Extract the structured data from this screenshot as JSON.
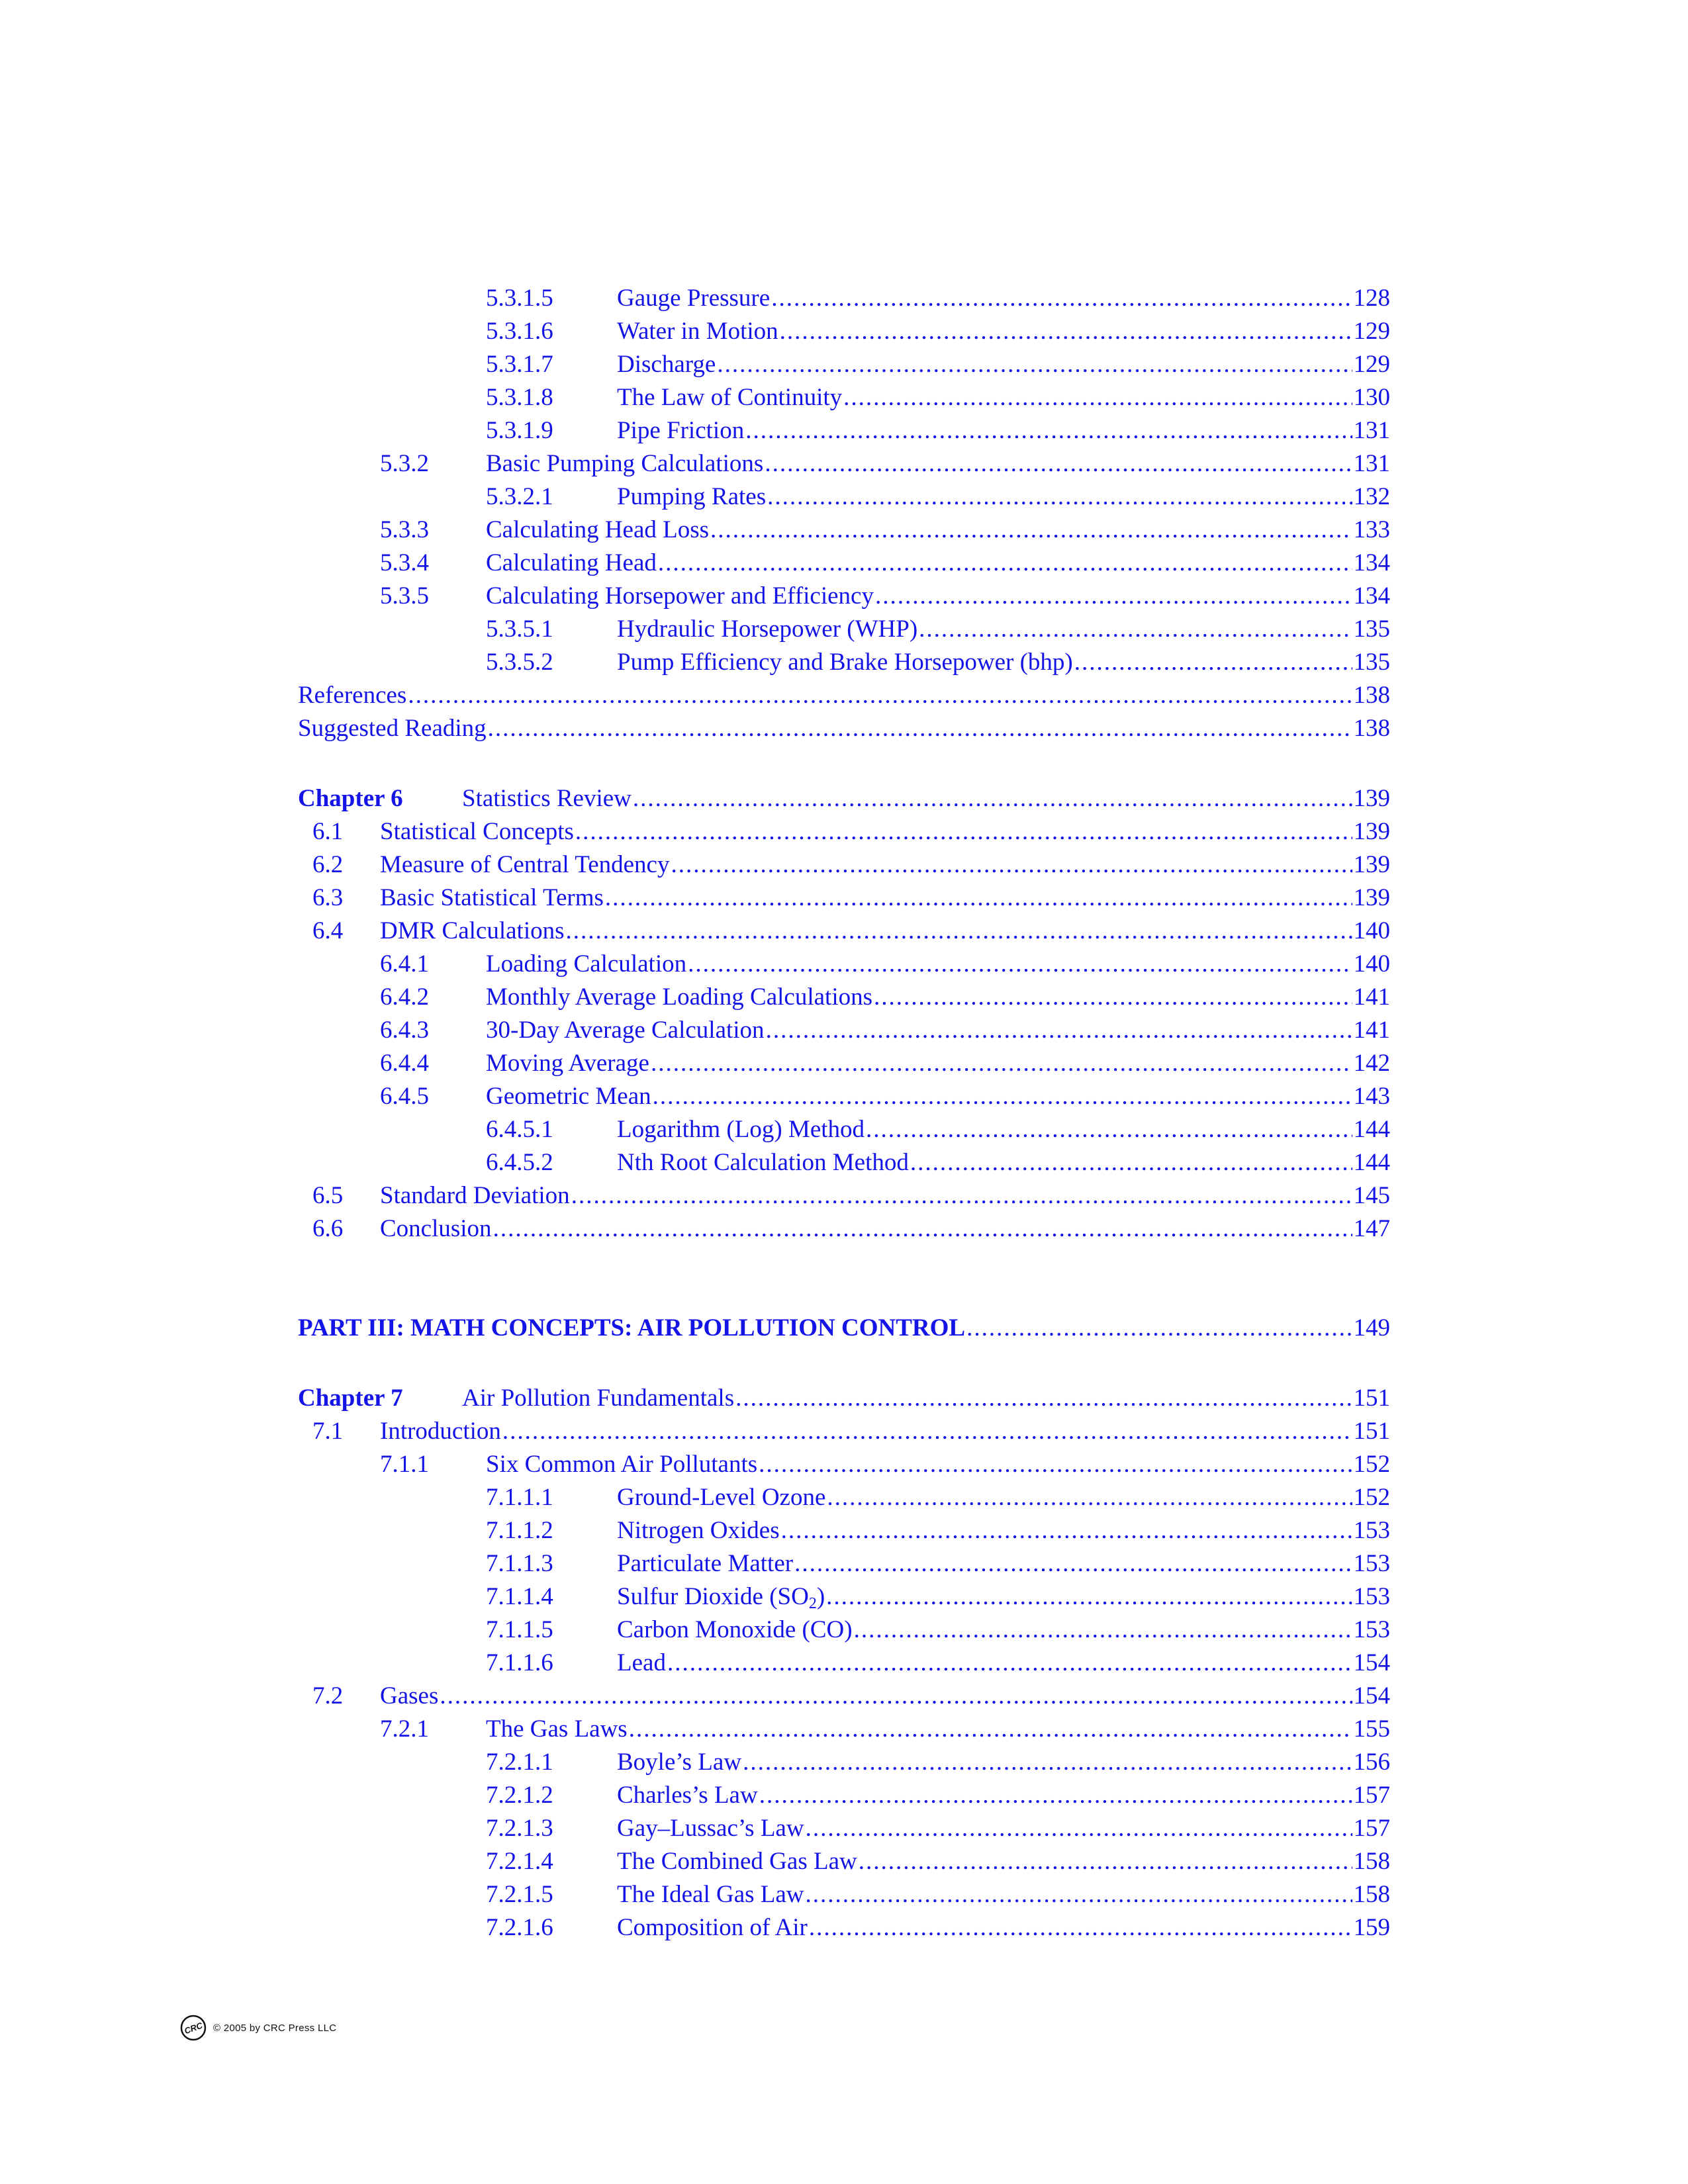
{
  "entries": [
    {
      "num": "5.3.1.5",
      "title": "Gauge Pressure",
      "page": "128",
      "level": 3
    },
    {
      "num": "5.3.1.6",
      "title": "Water in Motion",
      "page": "129",
      "level": 3
    },
    {
      "num": "5.3.1.7",
      "title": "Discharge",
      "page": "129",
      "level": 3
    },
    {
      "num": "5.3.1.8",
      "title": "The Law of Continuity",
      "page": "130",
      "level": 3
    },
    {
      "num": "5.3.1.9",
      "title": "Pipe Friction",
      "page": "131",
      "level": 3
    },
    {
      "num": "5.3.2",
      "title": "Basic Pumping Calculations",
      "page": "131",
      "level": 2
    },
    {
      "num": "5.3.2.1",
      "title": "Pumping Rates",
      "page": "132",
      "level": 3
    },
    {
      "num": "5.3.3",
      "title": "Calculating Head Loss",
      "page": "133",
      "level": 2
    },
    {
      "num": "5.3.4",
      "title": "Calculating Head",
      "page": "134",
      "level": 2
    },
    {
      "num": "5.3.5",
      "title": "Calculating Horsepower and Efficiency",
      "page": "134",
      "level": 2
    },
    {
      "num": "5.3.5.1",
      "title": "Hydraulic Horsepower (WHP)",
      "page": "135",
      "level": 3
    },
    {
      "num": "5.3.5.2",
      "title": "Pump Efficiency and Brake Horsepower (bhp)",
      "page": "135",
      "level": 3
    },
    {
      "num": "",
      "title": "References",
      "page": "138",
      "level": 0
    },
    {
      "num": "",
      "title": "Suggested Reading",
      "page": "138",
      "level": 0
    },
    {
      "gap": "small"
    },
    {
      "num": "Chapter 6",
      "title": "Statistics Review",
      "page": "139",
      "level": "chapter"
    },
    {
      "num": "6.1",
      "title": "Statistical Concepts",
      "page": "139",
      "level": 1
    },
    {
      "num": "6.2",
      "title": "Measure of Central Tendency",
      "page": "139",
      "level": 1
    },
    {
      "num": "6.3",
      "title": "Basic Statistical Terms",
      "page": "139",
      "level": 1
    },
    {
      "num": "6.4",
      "title": "DMR Calculations",
      "page": "140",
      "level": 1
    },
    {
      "num": "6.4.1",
      "title": "Loading Calculation",
      "page": "140",
      "level": 2
    },
    {
      "num": "6.4.2",
      "title": "Monthly Average Loading Calculations",
      "page": "141",
      "level": 2
    },
    {
      "num": "6.4.3",
      "title": "30-Day Average Calculation",
      "page": "141",
      "level": 2
    },
    {
      "num": "6.4.4",
      "title": "Moving Average",
      "page": "142",
      "level": 2
    },
    {
      "num": "6.4.5",
      "title": "Geometric Mean",
      "page": "143",
      "level": 2
    },
    {
      "num": "6.4.5.1",
      "title": "Logarithm (Log) Method",
      "page": "144",
      "level": 3
    },
    {
      "num": "6.4.5.2",
      "title": "Nth Root Calculation Method",
      "page": "144",
      "level": 3
    },
    {
      "num": "6.5",
      "title": "Standard Deviation",
      "page": "145",
      "level": 1
    },
    {
      "num": "6.6",
      "title": "Conclusion",
      "page": "147",
      "level": 1
    },
    {
      "gap": "big"
    },
    {
      "num": "",
      "title": "PART III: MATH CONCEPTS: AIR POLLUTION CONTROL",
      "page": "149",
      "level": "part"
    },
    {
      "gap": "small"
    },
    {
      "num": "Chapter 7",
      "title": "Air Pollution Fundamentals",
      "page": "151",
      "level": "chapter"
    },
    {
      "num": "7.1",
      "title": "Introduction",
      "page": "151",
      "level": 1
    },
    {
      "num": "7.1.1",
      "title": "Six Common Air Pollutants",
      "page": "152",
      "level": 2
    },
    {
      "num": "7.1.1.1",
      "title": "Ground-Level Ozone",
      "page": "152",
      "level": 3
    },
    {
      "num": "7.1.1.2",
      "title": "Nitrogen Oxides",
      "page": "153",
      "level": 3
    },
    {
      "num": "7.1.1.3",
      "title": "Particulate Matter",
      "page": "153",
      "level": 3
    },
    {
      "num": "7.1.1.4",
      "title": "Sulfur Dioxide (SO",
      "title_sub": "2",
      "title_tail": ")",
      "page": "153",
      "level": 3
    },
    {
      "num": "7.1.1.5",
      "title": "Carbon Monoxide (CO)",
      "page": "153",
      "level": 3
    },
    {
      "num": "7.1.1.6",
      "title": "Lead",
      "page": "154",
      "level": 3
    },
    {
      "num": "7.2",
      "title": "Gases",
      "page": "154",
      "level": 1
    },
    {
      "num": "7.2.1",
      "title": "The Gas Laws",
      "page": "155",
      "level": 2
    },
    {
      "num": "7.2.1.1",
      "title": "Boyle’s Law",
      "page": "156",
      "level": 3
    },
    {
      "num": "7.2.1.2",
      "title": "Charles’s Law",
      "page": "157",
      "level": 3
    },
    {
      "num": "7.2.1.3",
      "title": "Gay–Lussac’s Law",
      "page": "157",
      "level": 3
    },
    {
      "num": "7.2.1.4",
      "title": "The Combined Gas Law",
      "page": "158",
      "level": 3
    },
    {
      "num": "7.2.1.5",
      "title": "The Ideal Gas Law",
      "page": "158",
      "level": 3
    },
    {
      "num": "7.2.1.6",
      "title": "Composition of Air",
      "page": "159",
      "level": 3
    }
  ],
  "footer": {
    "logo_text": "CRC",
    "copyright": "© 2005 by CRC Press LLC"
  },
  "colors": {
    "link": "#1414e6",
    "text": "#111111"
  }
}
